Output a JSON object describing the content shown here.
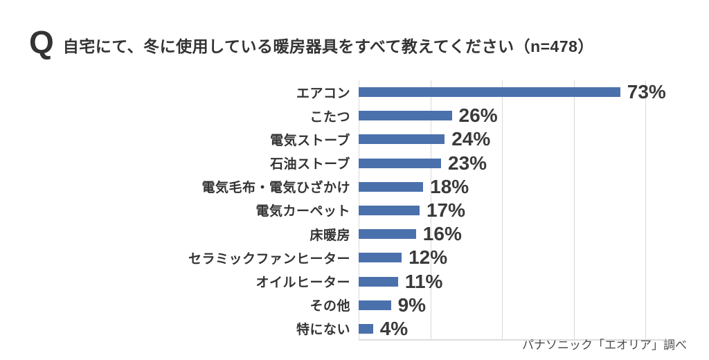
{
  "title": {
    "q_mark": "Q",
    "text": "自宅にて、冬に使用している暖房器具をすべて教えてください（n=478）"
  },
  "source": "パナソニック「エオリア」調べ",
  "chart_data": {
    "type": "bar",
    "orientation": "horizontal",
    "title": "自宅にて、冬に使用している暖房器具をすべて教えてください（n=478）",
    "categories": [
      "エアコン",
      "こたつ",
      "電気ストーブ",
      "石油ストーブ",
      "電気毛布・電気ひざかけ",
      "電気カーペット",
      "床暖房",
      "セラミックファンヒーター",
      "オイルヒーター",
      "その他",
      "特にない"
    ],
    "values": [
      73,
      26,
      24,
      23,
      18,
      17,
      16,
      12,
      11,
      9,
      4
    ],
    "value_labels": [
      "73%",
      "26%",
      "24%",
      "23%",
      "18%",
      "17%",
      "16%",
      "12%",
      "11%",
      "9%",
      "4%"
    ],
    "xlabel": "",
    "ylabel": "",
    "xlim": [
      0,
      80
    ],
    "gridlines": [
      0,
      20,
      40,
      60,
      80
    ],
    "grid": true,
    "legend": false,
    "bar_color": "#4B71AD",
    "gridline_color": "#d9d9d9",
    "text_color": "#333333"
  }
}
